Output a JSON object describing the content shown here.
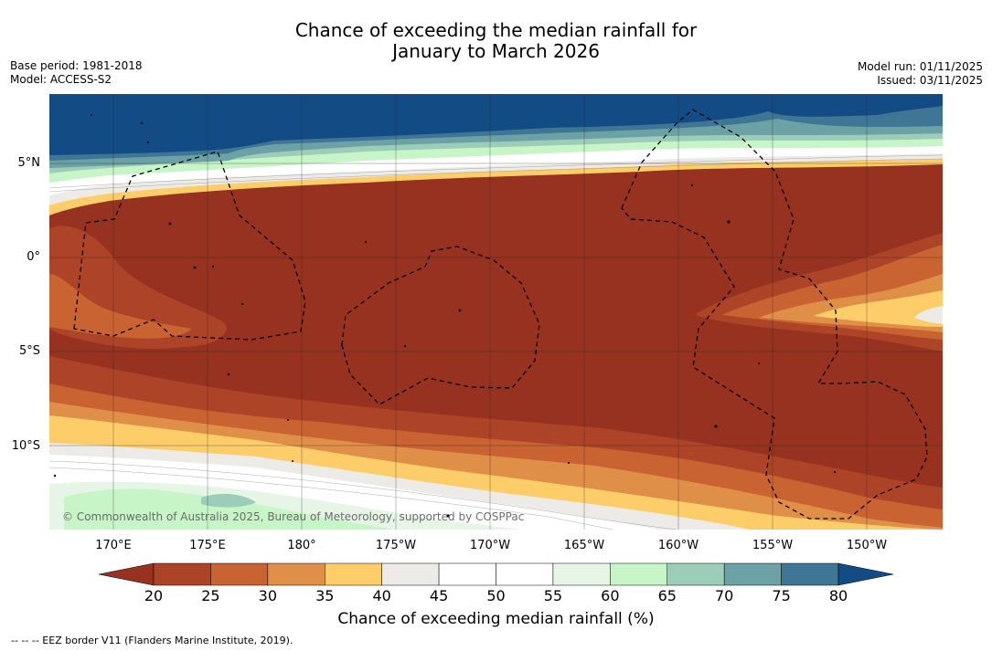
{
  "title_line1": "Chance of exceeding the median rainfall for",
  "title_line2": "January to March 2026",
  "base_period": "Base period: 1981-2018",
  "model": "Model: ACCESS-S2",
  "model_run": "Model run: 01/11/2025",
  "issued": "Issued: 03/11/2025",
  "copyright": "© Commonwealth of Australia 2025, Bureau of Meteorology, supported by COSPPac",
  "lat_labels": [
    "5°N",
    "0°",
    "5°S",
    "10°S"
  ],
  "lon_labels": [
    "170°E",
    "175°E",
    "180°",
    "175°W",
    "170°W",
    "165°W",
    "160°W",
    "155°W",
    "150°W"
  ],
  "colorbar": {
    "ticks": [
      "20",
      "25",
      "30",
      "35",
      "40",
      "45",
      "50",
      "55",
      "60",
      "65",
      "70",
      "75",
      "80"
    ],
    "colors": [
      "#ad4427",
      "#c96332",
      "#df8f47",
      "#fdcd6a",
      "#ecebe7",
      "#ffffff",
      "#ffffff",
      "#e7f5e7",
      "#c8f5c8",
      "#9bcdb8",
      "#6ca2a5",
      "#3f7696"
    ],
    "under_color": "#96321f",
    "over_color": "#134b85",
    "title": "Chance of exceeding median rainfall (%)"
  },
  "footer": "--  --  -- EEZ border V11 (Flanders Marine Institute, 2019)."
}
